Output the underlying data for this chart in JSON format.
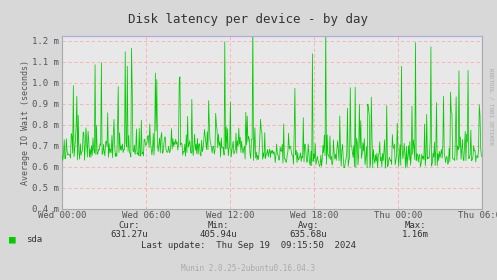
{
  "title": "Disk latency per device - by day",
  "ylabel": "Average IO Wait (seconds)",
  "background_color": "#d8d8d8",
  "plot_bg_color": "#e8e8e8",
  "line_color": "#00cc00",
  "grid_color_h": "#ffaaaa",
  "grid_color_v": "#ffaaaa",
  "ylim": [
    0.0004,
    0.00122
  ],
  "yticks": [
    0.0004,
    0.0005,
    0.0006,
    0.0007,
    0.0008,
    0.0009,
    0.001,
    0.0011,
    0.0012
  ],
  "ytick_labels": [
    "0.4 m",
    "0.5 m",
    "0.6 m",
    "0.7 m",
    "0.8 m",
    "0.9 m",
    "1.0 m",
    "1.1 m",
    "1.2 m"
  ],
  "xtick_labels": [
    "Wed 00:00",
    "Wed 06:00",
    "Wed 12:00",
    "Wed 18:00",
    "Thu 00:00",
    "Thu 06:00"
  ],
  "legend_label": "sda",
  "legend_color": "#00cc00",
  "right_label": "RRDTOOL / TOBI OETIKER",
  "munin_label": "Munin 2.0.25-2ubuntu0.16.04.3",
  "seed": 42,
  "n_points": 600
}
